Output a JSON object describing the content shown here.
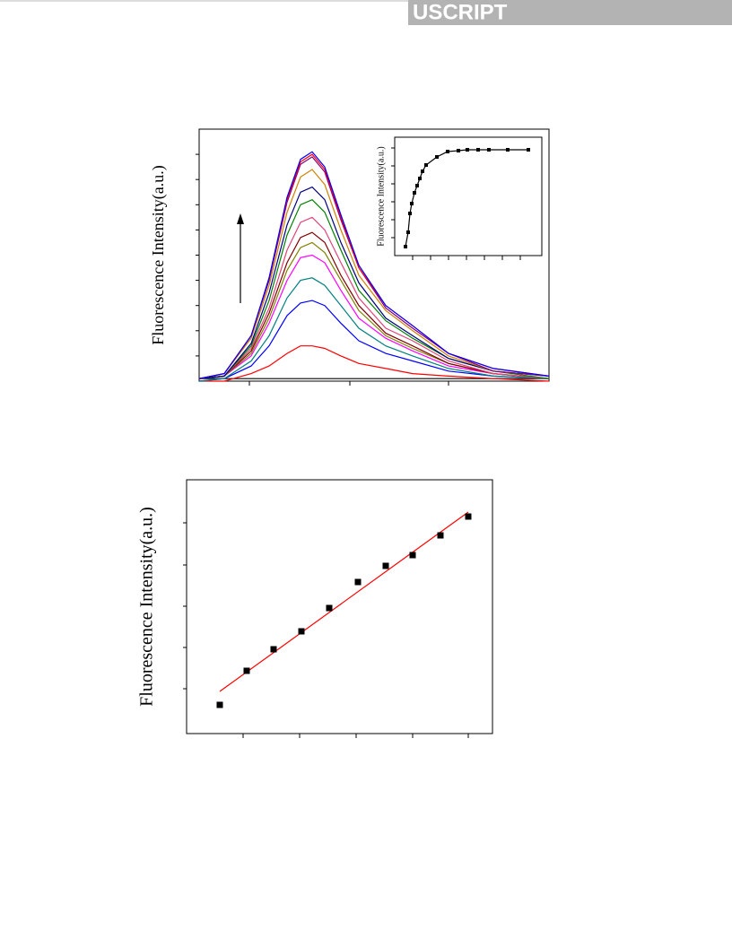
{
  "header": {
    "text": "USCRIPT"
  },
  "chart_data": [
    {
      "type": "line",
      "y_label": "Fluorescence Intensity(a.u.)",
      "x": [
        0,
        28,
        58,
        78,
        98,
        113,
        126,
        140,
        158,
        178,
        208,
        238,
        278,
        328,
        390
      ],
      "xlim": [
        0,
        390
      ],
      "xticks": [
        56,
        168,
        278
      ],
      "ylim": [
        0,
        100
      ],
      "yticks": [
        10,
        20,
        30,
        40,
        50,
        60,
        70,
        80,
        90
      ],
      "series": [
        {
          "color": "#000000",
          "values": [
            1,
            1,
            1,
            1,
            1,
            1,
            1,
            1,
            1,
            1,
            1,
            1,
            1,
            1,
            1
          ]
        },
        {
          "color": "#ff0000",
          "values": [
            0,
            0,
            3,
            6,
            11,
            14,
            14,
            13,
            10,
            7,
            5,
            3,
            2,
            1,
            0
          ]
        },
        {
          "color": "#0000ff",
          "values": [
            0,
            1,
            6,
            14,
            26,
            31,
            32,
            30,
            23,
            16,
            11,
            8,
            4,
            2,
            1
          ]
        },
        {
          "color": "#008080",
          "values": [
            0,
            1,
            8,
            18,
            33,
            40,
            41,
            38,
            30,
            21,
            14,
            10,
            5,
            2,
            1
          ]
        },
        {
          "color": "#ff00ff",
          "values": [
            1,
            2,
            10,
            23,
            40,
            49,
            50,
            47,
            36,
            25,
            17,
            12,
            6,
            3,
            1
          ]
        },
        {
          "color": "#808000",
          "values": [
            1,
            2,
            11,
            25,
            44,
            53,
            55,
            51,
            40,
            28,
            18,
            13,
            7,
            3,
            1
          ]
        },
        {
          "color": "#800000",
          "values": [
            1,
            2,
            12,
            27,
            47,
            57,
            59,
            55,
            42,
            30,
            19,
            14,
            7,
            3,
            1
          ]
        },
        {
          "color": "#e0457b",
          "values": [
            1,
            2,
            13,
            29,
            52,
            63,
            65,
            60,
            47,
            33,
            21,
            16,
            8,
            3,
            1
          ]
        },
        {
          "color": "#008000",
          "values": [
            1,
            2,
            14,
            32,
            58,
            70,
            72,
            67,
            52,
            36,
            24,
            17,
            9,
            4,
            1
          ]
        },
        {
          "color": "#000080",
          "values": [
            1,
            2,
            15,
            35,
            62,
            75,
            77,
            72,
            55,
            39,
            25,
            18,
            9,
            4,
            2
          ]
        },
        {
          "color": "#d08000",
          "values": [
            1,
            3,
            17,
            38,
            67,
            81,
            84,
            78,
            60,
            42,
            28,
            20,
            10,
            4,
            2
          ]
        },
        {
          "color": "#800080",
          "values": [
            1,
            3,
            18,
            40,
            71,
            86,
            89,
            83,
            64,
            45,
            29,
            21,
            11,
            4,
            2
          ]
        },
        {
          "color": "#ff0000",
          "values": [
            1,
            3,
            18,
            41,
            72,
            87,
            90,
            84,
            65,
            45,
            30,
            22,
            11,
            5,
            2
          ]
        },
        {
          "color": "#0000ff",
          "values": [
            1,
            3,
            18,
            41,
            73,
            88,
            91,
            85,
            66,
            46,
            30,
            22,
            11,
            5,
            2
          ]
        }
      ]
    },
    {
      "type": "line",
      "y_label": "Fluorescence Intensity(a.u.)",
      "markers": true,
      "x": [
        12,
        15,
        17,
        19,
        22,
        25,
        28,
        31,
        35,
        47,
        59,
        71,
        81,
        93,
        105,
        126,
        149
      ],
      "xlim": [
        0,
        164
      ],
      "xticks": [
        20,
        40,
        60,
        80,
        100,
        120,
        140
      ],
      "ylim": [
        0,
        132
      ],
      "yticks": [
        20,
        40,
        60,
        80,
        100,
        120
      ],
      "series": [
        {
          "color": "#000000",
          "values": [
            10,
            26,
            47,
            58,
            70,
            78,
            86,
            94,
            101,
            110,
            116,
            117,
            118,
            118,
            118,
            118,
            118
          ]
        }
      ]
    },
    {
      "type": "scatter",
      "y_label": "Fluorescence Intensity(a.u.)",
      "x": [
        37,
        67,
        97,
        128,
        159,
        191,
        222,
        252,
        283,
        314
      ],
      "values": [
        32,
        70,
        94,
        114,
        140,
        169,
        187,
        199,
        221,
        242
      ],
      "color": "#000000",
      "fit": {
        "x": [
          37,
          314
        ],
        "values": [
          47,
          247
        ],
        "color": "#ff0000"
      },
      "xlim": [
        0,
        341
      ],
      "xticks": [
        63,
        126,
        189,
        252,
        314
      ],
      "ylim": [
        0,
        283
      ],
      "yticks": [
        50,
        96,
        142,
        188,
        235
      ]
    }
  ]
}
